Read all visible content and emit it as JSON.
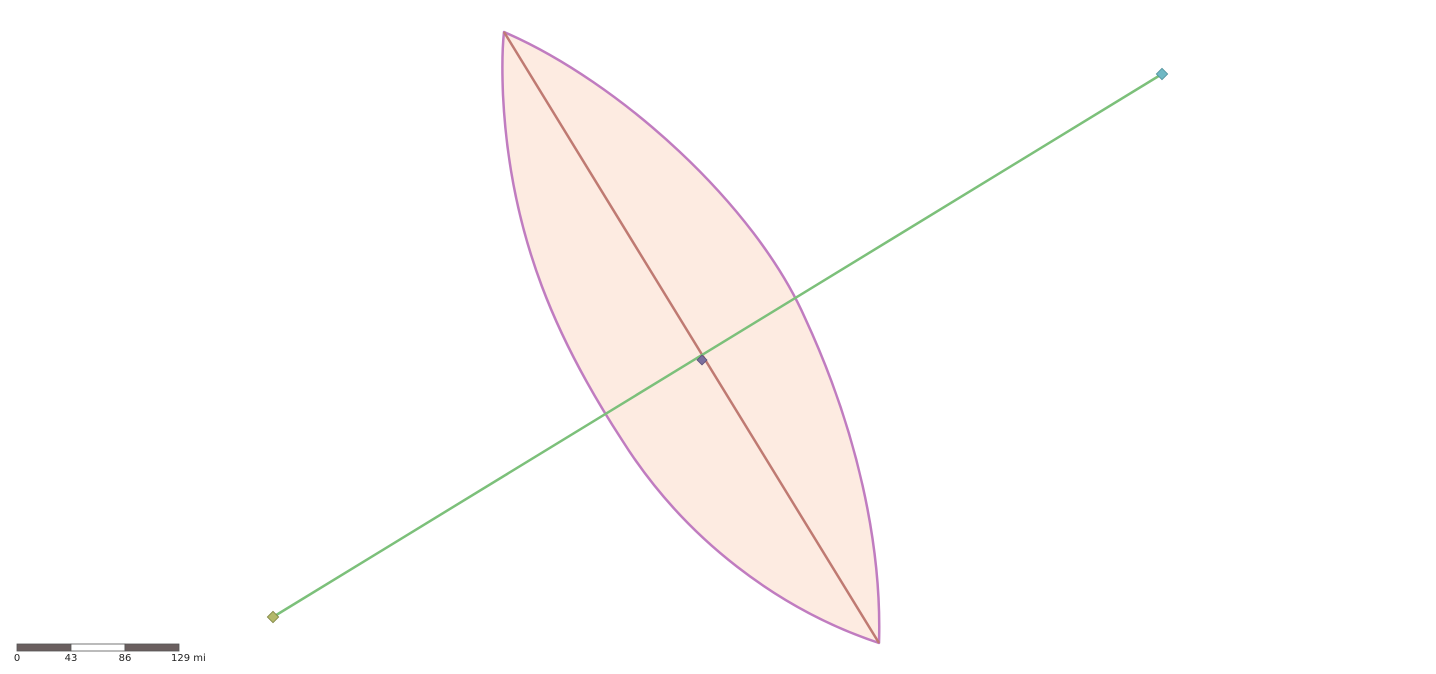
{
  "map": {
    "colors": {
      "background": "#ffffff",
      "lens_fill": "#fdebe1",
      "lens_stroke": "#c07cc0",
      "major_axis": "#bf7a72",
      "crossing_line": "#7cc07a",
      "endpoint_left": "#b3b86a",
      "endpoint_right": "#6fb8c4",
      "center_point": "#7b6f9e"
    },
    "features": [
      {
        "name": "lens-polygon",
        "type": "polygon"
      },
      {
        "name": "major-axis-line",
        "type": "line"
      },
      {
        "name": "crossing-line",
        "type": "line"
      },
      {
        "name": "left-endpoint-marker",
        "type": "point",
        "icon": "diamond-icon"
      },
      {
        "name": "right-endpoint-marker",
        "type": "point",
        "icon": "diamond-icon"
      },
      {
        "name": "center-point-marker",
        "type": "point",
        "icon": "diamond-icon"
      }
    ]
  },
  "scale_bar": {
    "unit": "mi",
    "ticks": [
      "0",
      "43",
      "86",
      "129 mi"
    ],
    "segment_colors": [
      "#6a5f5f",
      "#ffffff",
      "#6a5f5f"
    ]
  }
}
